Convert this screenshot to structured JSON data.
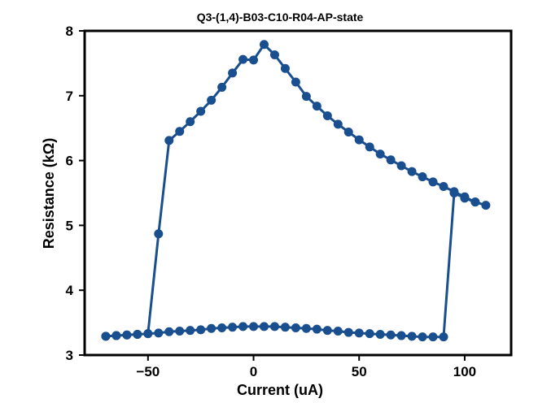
{
  "colors": {
    "series": "#1a4f8f",
    "axis": "#000000",
    "background": "#ffffff"
  },
  "chart_data": {
    "type": "line",
    "title": "Q3-(1,4)-B03-C10-R04-AP-state",
    "xlabel": "Current (uA)",
    "ylabel": "Resistance (kΩ)",
    "xlim": [
      -80,
      122
    ],
    "ylim": [
      3,
      8
    ],
    "xticks": [
      -50,
      0,
      50,
      100
    ],
    "yticks": [
      3,
      4,
      5,
      6,
      7,
      8
    ],
    "xtick_labels": [
      "−50",
      "0",
      "50",
      "100"
    ],
    "ytick_labels": [
      "3",
      "4",
      "5",
      "6",
      "7",
      "8"
    ],
    "grid": false,
    "legend": "none",
    "series": [
      {
        "x": [
          -70,
          -65,
          -60,
          -55,
          -50,
          -45,
          -40,
          -35,
          -30,
          -25,
          -20,
          -15,
          -10,
          -5,
          0,
          5,
          10,
          15,
          20,
          25,
          30,
          35,
          40,
          45,
          50,
          55,
          60,
          65,
          70,
          75,
          80,
          85,
          90,
          95,
          100,
          105,
          110,
          105,
          100,
          95,
          90,
          85,
          80,
          75,
          70,
          65,
          60,
          55,
          50,
          45,
          40,
          35,
          30,
          25,
          20,
          15,
          10,
          5,
          0,
          -5,
          -10,
          -15,
          -20,
          -25,
          -30,
          -35,
          -40,
          -45,
          -50,
          -55,
          -60,
          -65,
          -70
        ],
        "y": [
          3.29,
          3.3,
          3.31,
          3.32,
          3.33,
          3.34,
          3.36,
          3.37,
          3.38,
          3.39,
          3.41,
          3.42,
          3.43,
          3.44,
          3.44,
          3.44,
          3.44,
          3.43,
          3.42,
          3.41,
          3.4,
          3.38,
          3.37,
          3.35,
          3.34,
          3.33,
          3.32,
          3.31,
          3.3,
          3.29,
          3.28,
          3.28,
          3.28,
          5.5,
          5.42,
          5.36,
          5.31,
          5.36,
          5.44,
          5.52,
          5.6,
          5.67,
          5.75,
          5.83,
          5.92,
          6.01,
          6.1,
          6.21,
          6.32,
          6.44,
          6.56,
          6.69,
          6.84,
          6.99,
          7.21,
          7.42,
          7.63,
          7.79,
          7.55,
          7.56,
          7.35,
          7.13,
          6.93,
          6.76,
          6.6,
          6.45,
          6.31,
          4.87,
          3.33,
          3.32,
          3.31,
          3.3,
          3.29
        ]
      }
    ]
  }
}
